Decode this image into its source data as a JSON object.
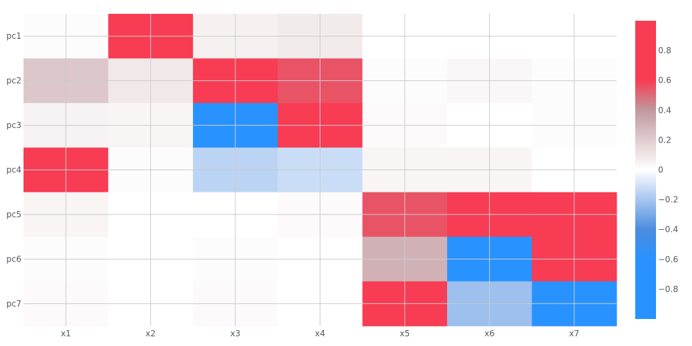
{
  "chart_data": {
    "type": "heatmap",
    "title": "",
    "xlabel": "",
    "ylabel": "",
    "x": [
      "x1",
      "x2",
      "x3",
      "x4",
      "x5",
      "x6",
      "x7"
    ],
    "y": [
      "pc1",
      "pc2",
      "pc3",
      "pc4",
      "pc5",
      "pc6",
      "pc7"
    ],
    "z": [
      [
        0.01,
        1.0,
        0.06,
        0.08,
        0.0,
        0.0,
        0.0
      ],
      [
        0.22,
        0.09,
        1.0,
        0.55,
        0.01,
        0.03,
        0.01
      ],
      [
        0.05,
        0.04,
        -0.72,
        1.0,
        0.02,
        0.0,
        0.01
      ],
      [
        1.0,
        0.01,
        -0.15,
        -0.12,
        0.04,
        0.04,
        0.0
      ],
      [
        0.04,
        0.0,
        0.0,
        0.02,
        0.55,
        1.0,
        0.6
      ],
      [
        0.01,
        0.0,
        0.01,
        0.0,
        0.3,
        -1.0,
        1.0
      ],
      [
        0.02,
        0.0,
        0.02,
        0.0,
        1.0,
        -0.22,
        -0.72
      ]
    ],
    "zmin": -1,
    "zmax": 1,
    "colorscale": [
      [
        0.0,
        "#2893ff"
      ],
      [
        0.2,
        "#2893ff"
      ],
      [
        0.3,
        "#4c8ce0"
      ],
      [
        0.5,
        "#ffffff"
      ],
      [
        0.7,
        "#c0999e"
      ],
      [
        0.8,
        "#f73c53"
      ],
      [
        1.0,
        "#f73c53"
      ]
    ],
    "colorbar_ticks": [
      0.8,
      0.6,
      0.4,
      0.2,
      0,
      -0.2,
      -0.4,
      -0.6,
      -0.8
    ],
    "colorbar_tick_labels": [
      "0.8",
      "0.6",
      "0.4",
      "0.2",
      "0",
      "−0.2",
      "−0.4",
      "−0.6",
      "−0.8"
    ],
    "grid": true
  }
}
